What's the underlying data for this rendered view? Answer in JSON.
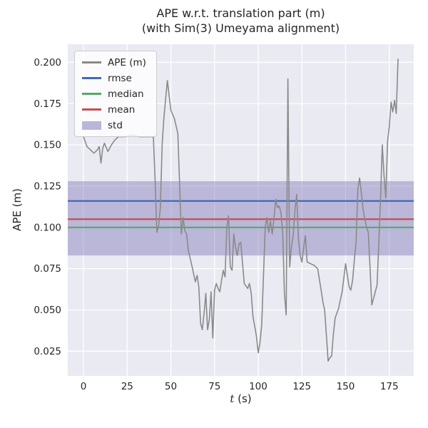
{
  "figure": {
    "title_line1": "APE w.r.t. translation part (m)",
    "title_line2": "(with Sim(3) Umeyama alignment)",
    "xlabel_var": "t",
    "xlabel_unit": "(s)",
    "ylabel": "APE (m)"
  },
  "colors": {
    "plot_bg": "#eaeaf2",
    "grid": "#ffffff",
    "text": "#262626",
    "ape_line": "#8a8a8a",
    "rmse": "#3d6bb5",
    "median": "#55a868",
    "mean": "#c44e52",
    "std": "#7a70b5",
    "legend_border": "#cccccc"
  },
  "legend": {
    "items": [
      {
        "label": "APE (m)",
        "type": "line",
        "color_key": "ape_line"
      },
      {
        "label": "rmse",
        "type": "line",
        "color_key": "rmse"
      },
      {
        "label": "median",
        "type": "line",
        "color_key": "median"
      },
      {
        "label": "mean",
        "type": "line",
        "color_key": "mean"
      },
      {
        "label": "std",
        "type": "patch",
        "color_key": "std"
      }
    ]
  },
  "chart_data": {
    "type": "line",
    "title": "APE w.r.t. translation part (m)\n(with Sim(3) Umeyama alignment)",
    "xlabel": "t (s)",
    "ylabel": "APE (m)",
    "xlim": [
      -9,
      189
    ],
    "ylim": [
      0.01,
      0.211
    ],
    "grid": true,
    "legend_position": "upper left",
    "xticks": [
      {
        "v": 0,
        "label": "0"
      },
      {
        "v": 25,
        "label": "25"
      },
      {
        "v": 50,
        "label": "50"
      },
      {
        "v": 75,
        "label": "75"
      },
      {
        "v": 100,
        "label": "100"
      },
      {
        "v": 125,
        "label": "125"
      },
      {
        "v": 150,
        "label": "150"
      },
      {
        "v": 175,
        "label": "175"
      }
    ],
    "yticks": [
      {
        "v": 0.025,
        "label": "0.025"
      },
      {
        "v": 0.05,
        "label": "0.050"
      },
      {
        "v": 0.075,
        "label": "0.075"
      },
      {
        "v": 0.1,
        "label": "0.100"
      },
      {
        "v": 0.125,
        "label": "0.125"
      },
      {
        "v": 0.15,
        "label": "0.150"
      },
      {
        "v": 0.175,
        "label": "0.175"
      },
      {
        "v": 0.2,
        "label": "0.200"
      }
    ],
    "stats": {
      "rmse": 0.116,
      "median": 0.1,
      "mean": 0.105,
      "std_low": 0.083,
      "std_high": 0.128
    },
    "series": [
      {
        "name": "APE (m)",
        "points": [
          [
            0,
            0.155
          ],
          [
            2,
            0.149
          ],
          [
            4,
            0.147
          ],
          [
            6,
            0.145
          ],
          [
            8,
            0.147
          ],
          [
            9,
            0.149
          ],
          [
            10,
            0.139
          ],
          [
            11,
            0.148
          ],
          [
            12,
            0.151
          ],
          [
            14,
            0.146
          ],
          [
            16,
            0.15
          ],
          [
            18,
            0.153
          ],
          [
            20,
            0.155
          ],
          [
            24,
            0.155
          ],
          [
            28,
            0.156
          ],
          [
            32,
            0.155
          ],
          [
            36,
            0.155
          ],
          [
            40,
            0.155
          ],
          [
            41,
            0.128
          ],
          [
            42,
            0.097
          ],
          [
            43,
            0.101
          ],
          [
            44,
            0.112
          ],
          [
            45,
            0.15
          ],
          [
            46,
            0.166
          ],
          [
            48,
            0.189
          ],
          [
            50,
            0.171
          ],
          [
            52,
            0.166
          ],
          [
            54,
            0.157
          ],
          [
            55,
            0.126
          ],
          [
            56,
            0.096
          ],
          [
            57,
            0.106
          ],
          [
            58,
            0.098
          ],
          [
            59,
            0.096
          ],
          [
            60,
            0.086
          ],
          [
            62,
            0.077
          ],
          [
            64,
            0.067
          ],
          [
            65,
            0.071
          ],
          [
            66,
            0.064
          ],
          [
            67,
            0.042
          ],
          [
            68,
            0.038
          ],
          [
            69,
            0.048
          ],
          [
            70,
            0.06
          ],
          [
            71,
            0.038
          ],
          [
            72,
            0.044
          ],
          [
            73,
            0.061
          ],
          [
            74,
            0.033
          ],
          [
            75,
            0.062
          ],
          [
            76,
            0.066
          ],
          [
            77,
            0.063
          ],
          [
            78,
            0.061
          ],
          [
            79,
            0.068
          ],
          [
            80,
            0.074
          ],
          [
            81,
            0.07
          ],
          [
            82,
            0.1
          ],
          [
            83,
            0.107
          ],
          [
            84,
            0.076
          ],
          [
            85,
            0.074
          ],
          [
            86,
            0.096
          ],
          [
            87,
            0.088
          ],
          [
            88,
            0.083
          ],
          [
            89,
            0.09
          ],
          [
            90,
            0.091
          ],
          [
            92,
            0.066
          ],
          [
            94,
            0.063
          ],
          [
            95,
            0.066
          ],
          [
            96,
            0.06
          ],
          [
            97,
            0.046
          ],
          [
            98,
            0.04
          ],
          [
            99,
            0.034
          ],
          [
            100,
            0.024
          ],
          [
            101,
            0.03
          ],
          [
            102,
            0.041
          ],
          [
            103,
            0.07
          ],
          [
            104,
            0.1
          ],
          [
            105,
            0.106
          ],
          [
            106,
            0.097
          ],
          [
            107,
            0.104
          ],
          [
            108,
            0.096
          ],
          [
            109,
            0.105
          ],
          [
            110,
            0.117
          ],
          [
            111,
            0.112
          ],
          [
            112,
            0.113
          ],
          [
            113,
            0.109
          ],
          [
            114,
            0.097
          ],
          [
            115,
            0.06
          ],
          [
            116,
            0.047
          ],
          [
            117,
            0.19
          ],
          [
            118,
            0.076
          ],
          [
            119,
            0.088
          ],
          [
            120,
            0.095
          ],
          [
            121,
            0.11
          ],
          [
            122,
            0.12
          ],
          [
            123,
            0.094
          ],
          [
            124,
            0.083
          ],
          [
            125,
            0.079
          ],
          [
            126,
            0.088
          ],
          [
            127,
            0.095
          ],
          [
            128,
            0.079
          ],
          [
            130,
            0.078
          ],
          [
            132,
            0.077
          ],
          [
            134,
            0.075
          ],
          [
            136,
            0.062
          ],
          [
            137,
            0.055
          ],
          [
            138,
            0.05
          ],
          [
            139,
            0.035
          ],
          [
            140,
            0.019
          ],
          [
            141,
            0.021
          ],
          [
            142,
            0.022
          ],
          [
            143,
            0.035
          ],
          [
            144,
            0.045
          ],
          [
            146,
            0.051
          ],
          [
            148,
            0.061
          ],
          [
            150,
            0.078
          ],
          [
            151,
            0.071
          ],
          [
            152,
            0.064
          ],
          [
            153,
            0.062
          ],
          [
            154,
            0.068
          ],
          [
            155,
            0.08
          ],
          [
            156,
            0.091
          ],
          [
            157,
            0.123
          ],
          [
            158,
            0.13
          ],
          [
            159,
            0.121
          ],
          [
            160,
            0.111
          ],
          [
            161,
            0.105
          ],
          [
            162,
            0.1
          ],
          [
            163,
            0.097
          ],
          [
            164,
            0.075
          ],
          [
            165,
            0.053
          ],
          [
            166,
            0.057
          ],
          [
            167,
            0.061
          ],
          [
            168,
            0.065
          ],
          [
            169,
            0.09
          ],
          [
            170,
            0.118
          ],
          [
            171,
            0.15
          ],
          [
            172,
            0.131
          ],
          [
            173,
            0.118
          ],
          [
            174,
            0.152
          ],
          [
            175,
            0.161
          ],
          [
            176,
            0.176
          ],
          [
            177,
            0.17
          ],
          [
            178,
            0.177
          ],
          [
            179,
            0.169
          ],
          [
            180,
            0.202
          ]
        ]
      }
    ]
  }
}
